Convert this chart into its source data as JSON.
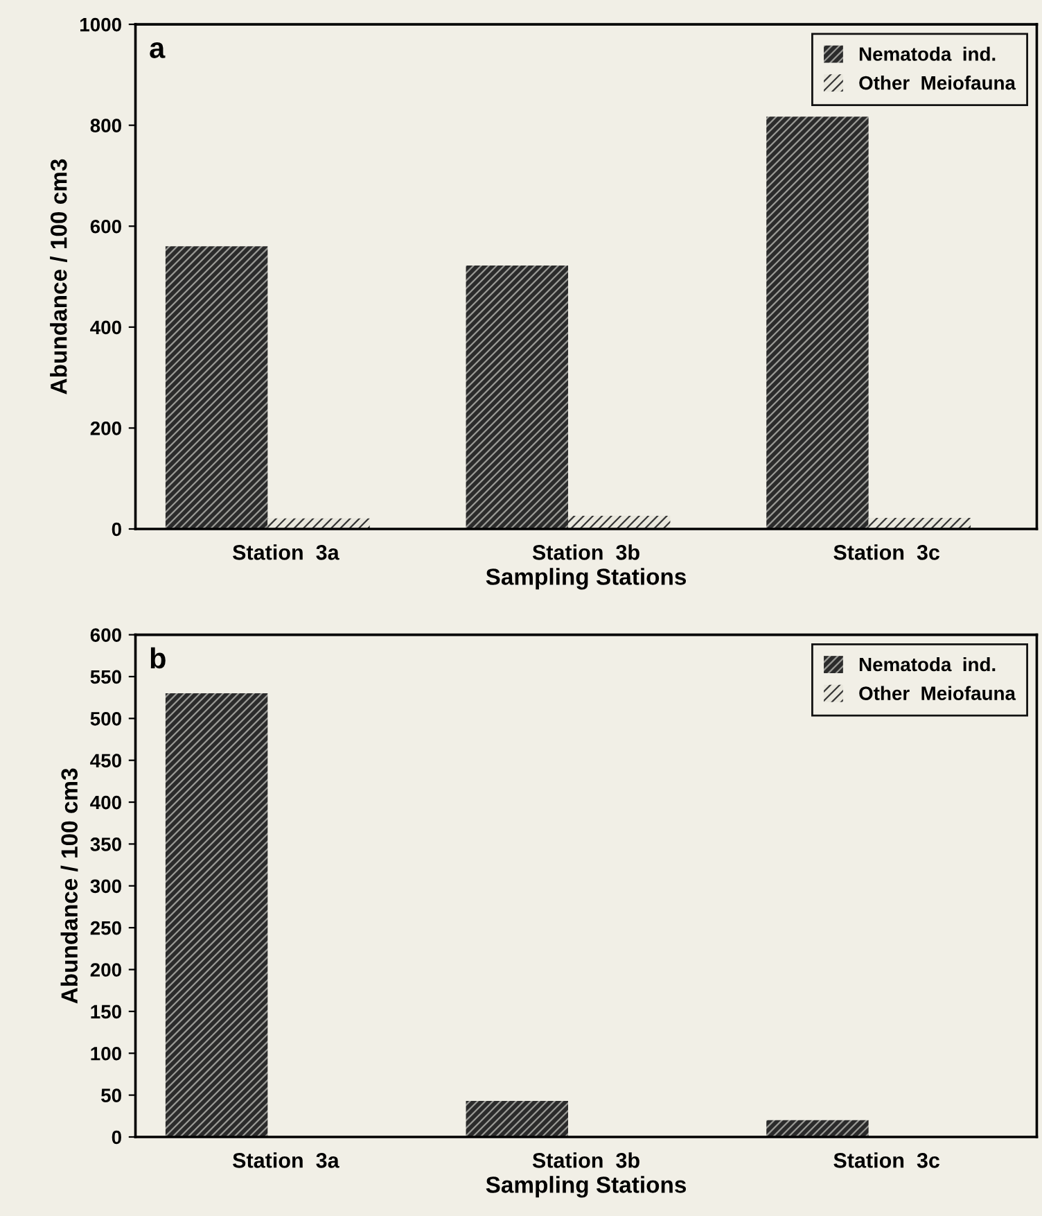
{
  "chart_data": [
    {
      "type": "bar",
      "annotations": [
        "a"
      ],
      "xlabel": "Sampling Stations",
      "ylabel": "Abundance / 100 cm3",
      "categories": [
        "Station  3a",
        "Station  3b",
        "Station  3c"
      ],
      "series": [
        {
          "name": "Nematoda  ind.",
          "color": "#2b2b2b",
          "values": [
            560,
            522,
            817
          ]
        },
        {
          "name": "Other  Meiofauna",
          "color": "#e9e7dd",
          "values": [
            21,
            26,
            22
          ]
        }
      ],
      "ylim": [
        0,
        1000
      ],
      "yticks": [
        0,
        200,
        400,
        600,
        800,
        1000
      ],
      "grid": false,
      "legend": "top right"
    },
    {
      "type": "bar",
      "annotations": [
        "b"
      ],
      "xlabel": "Sampling Stations",
      "ylabel": "Abundance / 100 cm3",
      "categories": [
        "Station  3a",
        "Station  3b",
        "Station  3c"
      ],
      "series": [
        {
          "name": "Nematoda  ind.",
          "color": "#2b2b2b",
          "values": [
            530,
            43,
            20
          ]
        },
        {
          "name": "Other  Meiofauna",
          "color": "#e9e7dd",
          "values": [
            0,
            0,
            0
          ]
        }
      ],
      "ylim": [
        0,
        600
      ],
      "yticks": [
        0,
        50,
        100,
        150,
        200,
        250,
        300,
        350,
        400,
        450,
        500,
        550,
        600
      ],
      "grid": false,
      "legend": "top right"
    }
  ]
}
